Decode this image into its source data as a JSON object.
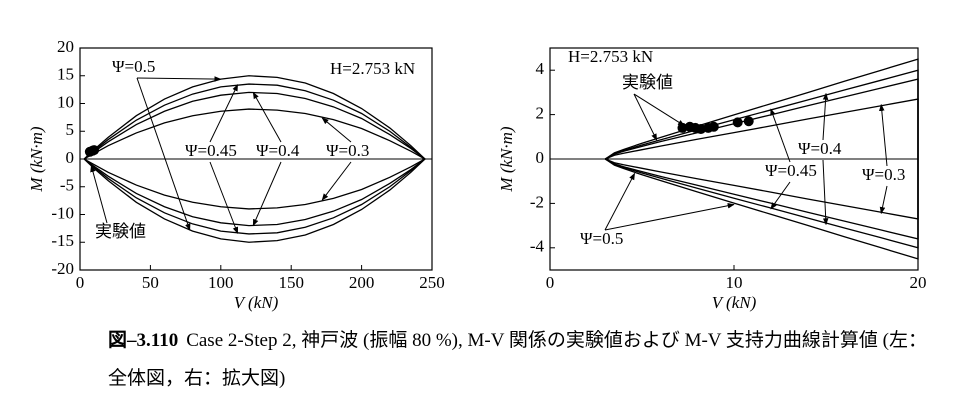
{
  "chart_data": [
    {
      "type": "line",
      "xlabel": "V (kN)",
      "ylabel": "M (kN·m)",
      "xlim": [
        0,
        250
      ],
      "ylim": [
        -20,
        20
      ],
      "xticks": [
        0,
        50,
        100,
        150,
        200,
        250
      ],
      "yticks": [
        -20,
        -15,
        -10,
        -5,
        0,
        5,
        10,
        15,
        20
      ],
      "annotations": [
        "H=2.753 kN"
      ],
      "series": [
        {
          "name": "Ψ=0.5",
          "color": "#000000",
          "x": [
            3,
            5,
            10,
            20,
            40,
            60,
            80,
            100,
            120,
            140,
            160,
            180,
            200,
            220,
            235,
            245,
            235,
            220,
            200,
            180,
            160,
            140,
            120,
            100,
            80,
            60,
            40,
            20,
            10,
            5,
            3
          ],
          "values": [
            0,
            0.5,
            1.7,
            3.9,
            7.8,
            10.8,
            13.0,
            14.4,
            15.0,
            14.7,
            13.7,
            11.8,
            9.1,
            5.6,
            2.4,
            0,
            -2.4,
            -5.6,
            -9.1,
            -11.8,
            -13.7,
            -14.7,
            -15.0,
            -14.4,
            -13.0,
            -10.8,
            -7.8,
            -3.9,
            -1.7,
            -0.5,
            0
          ]
        },
        {
          "name": "Ψ=0.45",
          "color": "#000000",
          "x": [
            3,
            5,
            10,
            20,
            40,
            60,
            80,
            100,
            120,
            140,
            160,
            180,
            200,
            220,
            235,
            245,
            235,
            220,
            200,
            180,
            160,
            140,
            120,
            100,
            80,
            60,
            40,
            20,
            10,
            5,
            3
          ],
          "values": [
            0,
            0.4,
            1.5,
            3.5,
            7.0,
            9.7,
            11.7,
            13.0,
            13.5,
            13.3,
            12.3,
            10.6,
            8.2,
            5.0,
            2.1,
            0,
            -2.1,
            -5.0,
            -8.2,
            -10.6,
            -12.3,
            -13.3,
            -13.5,
            -13.0,
            -11.7,
            -9.7,
            -7.0,
            -3.5,
            -1.5,
            -0.4,
            0
          ]
        },
        {
          "name": "Ψ=0.4",
          "color": "#000000",
          "x": [
            3,
            5,
            10,
            20,
            40,
            60,
            80,
            100,
            120,
            140,
            160,
            180,
            200,
            220,
            235,
            245,
            235,
            220,
            200,
            180,
            160,
            140,
            120,
            100,
            80,
            60,
            40,
            20,
            10,
            5,
            3
          ],
          "values": [
            0,
            0.4,
            1.3,
            3.1,
            6.2,
            8.6,
            10.4,
            11.5,
            12.0,
            11.8,
            10.9,
            9.4,
            7.3,
            4.4,
            1.9,
            0,
            -1.9,
            -4.4,
            -7.3,
            -9.4,
            -10.9,
            -11.8,
            -12.0,
            -11.5,
            -10.4,
            -8.6,
            -6.2,
            -3.1,
            -1.3,
            -0.4,
            0
          ]
        },
        {
          "name": "Ψ=0.3",
          "color": "#000000",
          "x": [
            3,
            5,
            10,
            20,
            40,
            60,
            80,
            100,
            120,
            140,
            160,
            180,
            200,
            220,
            235,
            245,
            235,
            220,
            200,
            180,
            160,
            140,
            120,
            100,
            80,
            60,
            40,
            20,
            10,
            5,
            3
          ],
          "values": [
            0,
            0.3,
            1.0,
            2.4,
            4.7,
            6.5,
            7.8,
            8.6,
            9.0,
            8.8,
            8.2,
            7.1,
            5.5,
            3.3,
            1.4,
            0,
            -1.4,
            -3.3,
            -5.5,
            -7.1,
            -8.2,
            -8.8,
            -9.0,
            -8.6,
            -7.8,
            -6.5,
            -4.7,
            -2.4,
            -1.0,
            -0.3,
            0
          ]
        }
      ],
      "points": {
        "name": "実験値",
        "color": "#000000",
        "x": [
          7,
          9,
          10
        ],
        "values": [
          1.3,
          1.5,
          1.6
        ]
      }
    },
    {
      "type": "line",
      "xlabel": "V (kN)",
      "ylabel": "M (kN·m)",
      "xlim": [
        0,
        20
      ],
      "ylim": [
        -5,
        5
      ],
      "xticks": [
        0,
        10,
        20
      ],
      "yticks": [
        -4,
        -2,
        0,
        2,
        4
      ],
      "annotations": [
        "H=2.753 kN"
      ],
      "series": [
        {
          "name": "Ψ=0.5",
          "color": "#000000",
          "x": [
            3,
            3.5,
            4,
            5,
            6,
            8,
            10,
            12,
            14,
            16,
            18,
            20,
            20,
            18,
            16,
            14,
            12,
            10,
            8,
            6,
            5,
            4,
            3.5,
            3
          ],
          "values": [
            0,
            0.28,
            0.43,
            0.71,
            0.97,
            1.48,
            1.99,
            2.49,
            2.99,
            3.5,
            4.0,
            4.5,
            -4.5,
            -4.0,
            -3.5,
            -2.99,
            -2.49,
            -1.99,
            -1.48,
            -0.97,
            -0.71,
            -0.43,
            -0.28,
            0
          ]
        },
        {
          "name": "Ψ=0.45",
          "color": "#000000",
          "x": [
            3,
            3.5,
            4,
            5,
            6,
            8,
            10,
            12,
            14,
            16,
            18,
            20,
            20,
            18,
            16,
            14,
            12,
            10,
            8,
            6,
            5,
            4,
            3.5,
            3
          ],
          "values": [
            0,
            0.25,
            0.39,
            0.63,
            0.86,
            1.32,
            1.77,
            2.21,
            2.66,
            3.11,
            3.55,
            4.0,
            -4.0,
            -3.55,
            -3.11,
            -2.66,
            -2.21,
            -1.77,
            -1.32,
            -0.86,
            -0.63,
            -0.39,
            -0.25,
            0
          ]
        },
        {
          "name": "Ψ=0.4",
          "color": "#000000",
          "x": [
            3,
            3.5,
            4,
            5,
            6,
            8,
            10,
            12,
            14,
            16,
            18,
            20,
            20,
            18,
            16,
            14,
            12,
            10,
            8,
            6,
            5,
            4,
            3.5,
            3
          ],
          "values": [
            0,
            0.22,
            0.35,
            0.57,
            0.78,
            1.18,
            1.59,
            1.99,
            2.4,
            2.8,
            3.2,
            3.6,
            -3.6,
            -3.2,
            -2.8,
            -2.4,
            -1.99,
            -1.59,
            -1.18,
            -0.78,
            -0.57,
            -0.35,
            -0.22,
            0
          ]
        },
        {
          "name": "Ψ=0.3",
          "color": "#000000",
          "x": [
            3,
            3.5,
            4,
            5,
            6,
            8,
            10,
            12,
            14,
            16,
            18,
            20,
            20,
            18,
            16,
            14,
            12,
            10,
            8,
            6,
            5,
            4,
            3.5,
            3
          ],
          "values": [
            0,
            0.17,
            0.26,
            0.42,
            0.58,
            0.89,
            1.19,
            1.49,
            1.8,
            2.1,
            2.4,
            2.7,
            -2.7,
            -2.4,
            -2.1,
            -1.8,
            -1.49,
            -1.19,
            -0.89,
            -0.58,
            -0.42,
            -0.26,
            -0.17,
            0
          ]
        }
      ],
      "points": {
        "name": "実験値",
        "color": "#000000",
        "x": [
          7.2,
          7.6,
          7.9,
          8.2,
          8.6,
          8.9,
          10.2,
          10.8
        ],
        "values": [
          1.4,
          1.45,
          1.4,
          1.35,
          1.4,
          1.45,
          1.65,
          1.7
        ]
      }
    }
  ],
  "caption": {
    "label": "図–3.110",
    "text": "Case 2-Step 2, 神戸波 (振幅 80 %), M-V 関係の実験値および M-V 支持力曲線計算値 (左：全体図，右：拡大図)"
  }
}
